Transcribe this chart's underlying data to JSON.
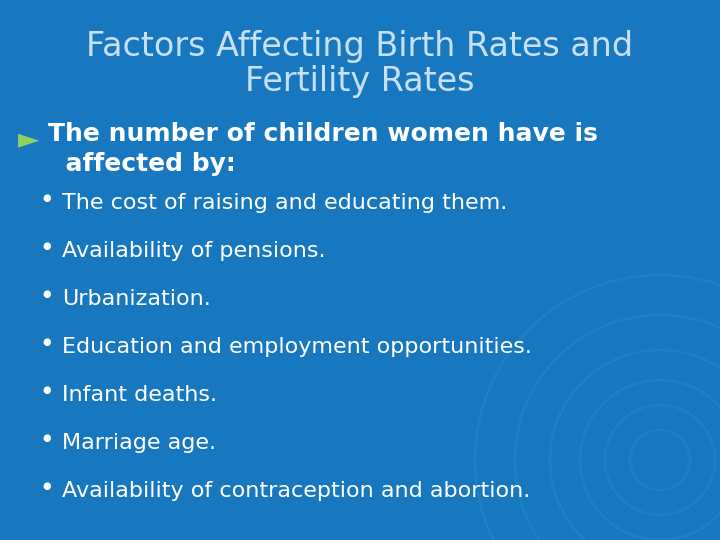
{
  "title_line1": "Factors Affecting Birth Rates and",
  "title_line2": "Fertility Rates",
  "title_color": "#c8e0f4",
  "background_color": "#1878bf",
  "main_bullet_symbol": "►",
  "main_bullet_color": "#90d060",
  "main_text_line1": "The number of children women have is",
  "main_text_line2": "  affected by:",
  "main_text_color": "#ffffff",
  "sub_bullets": [
    "The cost of raising and educating them.",
    "Availability of pensions.",
    "Urbanization.",
    "Education and employment opportunities.",
    "Infant deaths.",
    "Marriage age.",
    "Availability of contraception and abortion."
  ],
  "sub_bullet_color": "#ffffff",
  "sub_bullet_dot_color": "#ffffff",
  "title_fontsize": 24,
  "main_fontsize": 18,
  "sub_fontsize": 16,
  "circle_color": "#2a90d0",
  "circle_alpha": 0.35
}
